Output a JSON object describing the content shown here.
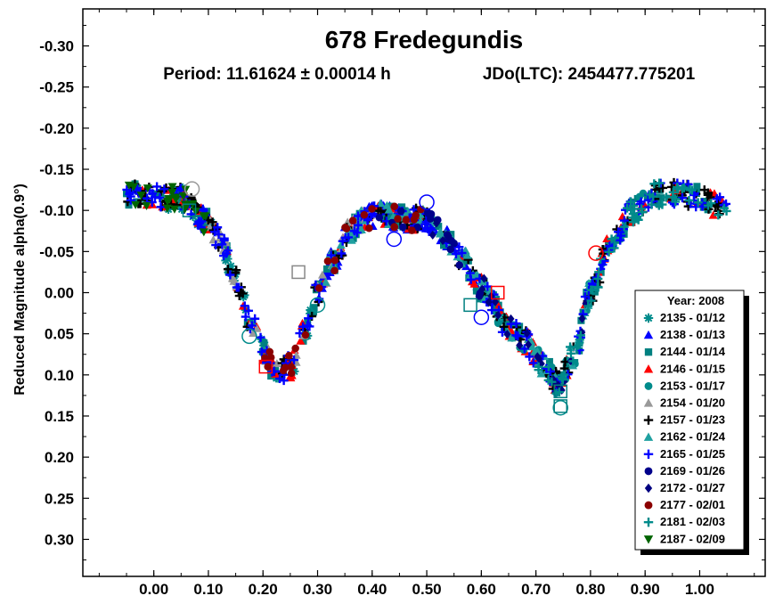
{
  "chart_data": {
    "type": "scatter",
    "title": "678 Fredegundis",
    "subtitle_period": "Period: 11.61624 ± 0.00014 h",
    "subtitle_epoch": "JDo(LTC): 2454477.775201",
    "ylabel": "Reduced Magnitude alpha(0.9°)",
    "xlabel": "",
    "xlim": [
      -0.13,
      1.12
    ],
    "ylim": [
      -0.345,
      0.345
    ],
    "y_inverted": true,
    "grid": false,
    "legend_position": "bottom-right",
    "x_ticks": [
      0.0,
      0.1,
      0.2,
      0.3,
      0.4,
      0.5,
      0.6,
      0.7,
      0.8,
      0.9,
      1.0
    ],
    "x_tick_labels": [
      "0.00",
      "0.10",
      "0.20",
      "0.30",
      "0.40",
      "0.50",
      "0.60",
      "0.70",
      "0.80",
      "0.90",
      "1.00"
    ],
    "y_ticks": [
      -0.3,
      -0.25,
      -0.2,
      -0.15,
      -0.1,
      -0.05,
      0.0,
      0.05,
      0.1,
      0.15,
      0.2,
      0.25,
      0.3
    ],
    "y_tick_labels": [
      "-0.30",
      "-0.25",
      "-0.20",
      "-0.15",
      "-0.10",
      "-0.05",
      "0.00",
      "0.05",
      "0.10",
      "0.15",
      "0.20",
      "0.25",
      "0.30"
    ],
    "legend_title": "Year: 2008",
    "lightcurve_shape": [
      [
        -0.05,
        -0.12
      ],
      [
        0.0,
        -0.115
      ],
      [
        0.05,
        -0.115
      ],
      [
        0.1,
        -0.085
      ],
      [
        0.12,
        -0.065
      ],
      [
        0.15,
        -0.015
      ],
      [
        0.18,
        0.04
      ],
      [
        0.2,
        0.07
      ],
      [
        0.225,
        0.1
      ],
      [
        0.25,
        0.09
      ],
      [
        0.28,
        0.04
      ],
      [
        0.3,
        0.0
      ],
      [
        0.33,
        -0.04
      ],
      [
        0.36,
        -0.075
      ],
      [
        0.38,
        -0.09
      ],
      [
        0.42,
        -0.095
      ],
      [
        0.46,
        -0.09
      ],
      [
        0.5,
        -0.088
      ],
      [
        0.53,
        -0.07
      ],
      [
        0.56,
        -0.045
      ],
      [
        0.6,
        -0.005
      ],
      [
        0.65,
        0.04
      ],
      [
        0.68,
        0.06
      ],
      [
        0.71,
        0.085
      ],
      [
        0.74,
        0.11
      ],
      [
        0.77,
        0.075
      ],
      [
        0.8,
        0.0
      ],
      [
        0.84,
        -0.065
      ],
      [
        0.88,
        -0.1
      ],
      [
        0.92,
        -0.12
      ],
      [
        0.96,
        -0.12
      ],
      [
        1.0,
        -0.115
      ],
      [
        1.05,
        -0.1
      ]
    ],
    "series": [
      {
        "name": "2135 - 01/12",
        "color": "#008b8b",
        "marker": "asterisk",
        "x_range": [
          0.0,
          0.3
        ]
      },
      {
        "name": "2138 - 01/13",
        "color": "#0000ff",
        "marker": "triangle-up",
        "x_range": [
          0.3,
          0.6
        ]
      },
      {
        "name": "2144 - 01/14",
        "color": "#008080",
        "marker": "square",
        "x_range": [
          -0.05,
          1.05
        ]
      },
      {
        "name": "2146 - 01/15",
        "color": "#ff0000",
        "marker": "triangle-up",
        "x_range": [
          -0.05,
          1.05
        ]
      },
      {
        "name": "2153 - 01/17",
        "color": "#008b8b",
        "marker": "circle",
        "x_range": [
          0.6,
          0.9
        ]
      },
      {
        "name": "2154 - 01/20",
        "color": "#999999",
        "marker": "triangle-up",
        "x_range": [
          0.1,
          0.4
        ]
      },
      {
        "name": "2157 - 01/23",
        "color": "#000000",
        "marker": "plus",
        "x_range": [
          -0.05,
          1.05
        ]
      },
      {
        "name": "2162 - 01/24",
        "color": "#20a0a0",
        "marker": "triangle-up",
        "x_range": [
          0.3,
          0.8
        ]
      },
      {
        "name": "2165 - 01/25",
        "color": "#0000ff",
        "marker": "plus",
        "x_range": [
          -0.05,
          1.05
        ]
      },
      {
        "name": "2169 - 01/26",
        "color": "#00008b",
        "marker": "circle",
        "x_range": [
          0.4,
          0.6
        ]
      },
      {
        "name": "2172 - 01/27",
        "color": "#000080",
        "marker": "diamond",
        "x_range": [
          0.5,
          0.8
        ]
      },
      {
        "name": "2177 - 02/01",
        "color": "#8b0000",
        "marker": "circle",
        "x_range": [
          0.2,
          0.5
        ]
      },
      {
        "name": "2181 - 02/03",
        "color": "#008b8b",
        "marker": "plus",
        "x_range": [
          0.7,
          1.05
        ]
      },
      {
        "name": "2187 - 02/09",
        "color": "#006400",
        "marker": "triangle-down",
        "x_range": [
          -0.05,
          0.1
        ]
      }
    ]
  }
}
